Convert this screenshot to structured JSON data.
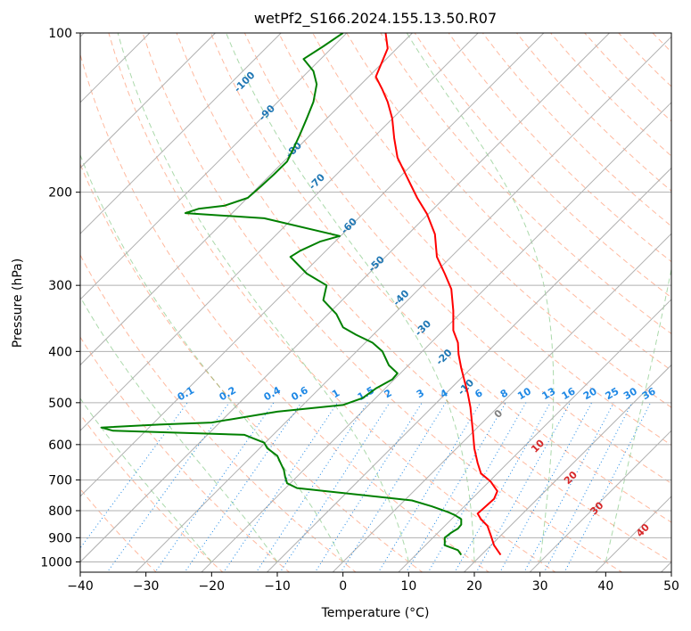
{
  "chart_data": {
    "type": "skew-t log-p",
    "title": "wetPf2_S166.2024.155.13.50.R07",
    "xlabel": "Temperature (°C)",
    "ylabel": "Pressure (hPa)",
    "xlim": [
      -40,
      50
    ],
    "ylim": [
      1030,
      100
    ],
    "y_scale": "log",
    "grid": true,
    "x_ticks": [
      "−40",
      "−30",
      "−20",
      "−10",
      "0",
      "10",
      "20",
      "30",
      "40",
      "50"
    ],
    "y_ticks": [
      "100",
      "200",
      "300",
      "400",
      "500",
      "600",
      "700",
      "800",
      "900",
      "1000"
    ],
    "isotherm_spacing_c": 10,
    "dry_adiabat_theta_c": [
      -30,
      -20,
      -10,
      0,
      10,
      20,
      30,
      40,
      50,
      60,
      70,
      80,
      90,
      100,
      110,
      120,
      130,
      140,
      150,
      160,
      170,
      180,
      190,
      200
    ],
    "moist_adiabat_start_c": [
      -20,
      -10,
      0,
      10,
      20,
      30,
      40
    ],
    "mixing_ratio_labels": [
      "0.1",
      "0.2",
      "0.4",
      "0.6",
      "1",
      "1.5",
      "2",
      "3",
      "4",
      "6",
      "8",
      "10",
      "13",
      "16",
      "20",
      "25",
      "30",
      "36"
    ],
    "mixing_ratio_values": [
      0.1,
      0.2,
      0.4,
      0.6,
      1,
      1.5,
      2,
      3,
      4,
      6,
      8,
      10,
      13,
      16,
      20,
      25,
      30,
      36
    ],
    "frost_point_labels": [
      {
        "text": "-100",
        "p": 125
      },
      {
        "text": "-90",
        "p": 143
      },
      {
        "text": "-80",
        "p": 168
      },
      {
        "text": "-70",
        "p": 193
      },
      {
        "text": "-60",
        "p": 234
      },
      {
        "text": "-50",
        "p": 276
      },
      {
        "text": "-40",
        "p": 320
      },
      {
        "text": "-30",
        "p": 365
      },
      {
        "text": "-20",
        "p": 414
      },
      {
        "text": "-10",
        "p": 472
      }
    ],
    "ice_labels": [
      {
        "text": "0",
        "t": 24,
        "p": 530
      }
    ],
    "temperature_labels": [
      {
        "text": "10",
        "t": 30,
        "p": 610
      },
      {
        "text": "20",
        "t": 35,
        "p": 700
      },
      {
        "text": "30",
        "t": 39,
        "p": 800
      },
      {
        "text": "40",
        "t": 46,
        "p": 880
      }
    ],
    "series": [
      {
        "color": "#ff0000",
        "points": [
          [
            24,
            970
          ],
          [
            23,
            930
          ],
          [
            22.5,
            890
          ],
          [
            22,
            855
          ],
          [
            21,
            830
          ],
          [
            20.5,
            810
          ],
          [
            21.5,
            790
          ],
          [
            23,
            760
          ],
          [
            23.5,
            735
          ],
          [
            22.5,
            705
          ],
          [
            21,
            680
          ],
          [
            20.5,
            650
          ],
          [
            20,
            610
          ],
          [
            19.8,
            570
          ],
          [
            19.6,
            540
          ],
          [
            19.4,
            510
          ],
          [
            19,
            480
          ],
          [
            18.5,
            455
          ],
          [
            18,
            430
          ],
          [
            17.6,
            405
          ],
          [
            17.5,
            385
          ],
          [
            16.8,
            365
          ],
          [
            16.8,
            335
          ],
          [
            16.5,
            305
          ],
          [
            15.5,
            285
          ],
          [
            14.3,
            265
          ],
          [
            14,
            240
          ],
          [
            12.8,
            220
          ],
          [
            11.3,
            205
          ],
          [
            10,
            190
          ],
          [
            8.3,
            172
          ],
          [
            7.8,
            158
          ],
          [
            7.5,
            145
          ],
          [
            6.8,
            135
          ],
          [
            6,
            128
          ],
          [
            5,
            121
          ],
          [
            6,
            113
          ],
          [
            6.8,
            107
          ],
          [
            6.5,
            100
          ]
        ]
      },
      {
        "color": "#008000",
        "points": [
          [
            18,
            970
          ],
          [
            17.5,
            950
          ],
          [
            15.5,
            930
          ],
          [
            15.5,
            900
          ],
          [
            16.5,
            880
          ],
          [
            17.5,
            865
          ],
          [
            18,
            850
          ],
          [
            18,
            830
          ],
          [
            17,
            815
          ],
          [
            16,
            805
          ],
          [
            13.5,
            785
          ],
          [
            10.5,
            765
          ],
          [
            -7,
            725
          ],
          [
            -8.5,
            710
          ],
          [
            -8.8,
            690
          ],
          [
            -9,
            670
          ],
          [
            -9.5,
            650
          ],
          [
            -10,
            630
          ],
          [
            -11.5,
            610
          ],
          [
            -12,
            595
          ],
          [
            -13.5,
            585
          ],
          [
            -15,
            575
          ],
          [
            -35,
            565
          ],
          [
            -36.8,
            557
          ],
          [
            -28,
            550
          ],
          [
            -20,
            545
          ],
          [
            -10,
            520
          ],
          [
            0,
            505
          ],
          [
            3,
            490
          ],
          [
            5,
            470
          ],
          [
            7.5,
            452
          ],
          [
            8.3,
            440
          ],
          [
            7,
            425
          ],
          [
            6,
            400
          ],
          [
            4.5,
            385
          ],
          [
            2,
            372
          ],
          [
            0,
            360
          ],
          [
            -1,
            340
          ],
          [
            -3,
            320
          ],
          [
            -2.5,
            300
          ],
          [
            -5.5,
            285
          ],
          [
            -8,
            265
          ],
          [
            -6.5,
            258
          ],
          [
            -3.5,
            248
          ],
          [
            -0.5,
            242
          ],
          [
            -12,
            224
          ],
          [
            -24,
            219
          ],
          [
            -22,
            215
          ],
          [
            -18,
            212
          ],
          [
            -14.5,
            205
          ],
          [
            -12.5,
            195
          ],
          [
            -10.5,
            185
          ],
          [
            -8.5,
            175
          ],
          [
            -7.5,
            165
          ],
          [
            -6.5,
            155
          ],
          [
            -5.5,
            145
          ],
          [
            -4.5,
            135
          ],
          [
            -4,
            125
          ],
          [
            -4.5,
            118
          ],
          [
            -6,
            112
          ],
          [
            -3,
            106
          ],
          [
            0,
            100
          ]
        ]
      }
    ]
  },
  "colors": {
    "temperature": "#ff0000",
    "dewpoint": "#008000",
    "isotherm_grid": "#b0b0b0",
    "pressure_grid": "#b0b0b0",
    "dry_adiabat": "#ff7f50",
    "moist_adiabat": "#2ca02c",
    "mixing_ratio": "#1e88e5",
    "ice_line": "#d2b48c",
    "frost_label": "#1f77b4",
    "ice_label": "#808080",
    "temp_label": "#d62728"
  }
}
